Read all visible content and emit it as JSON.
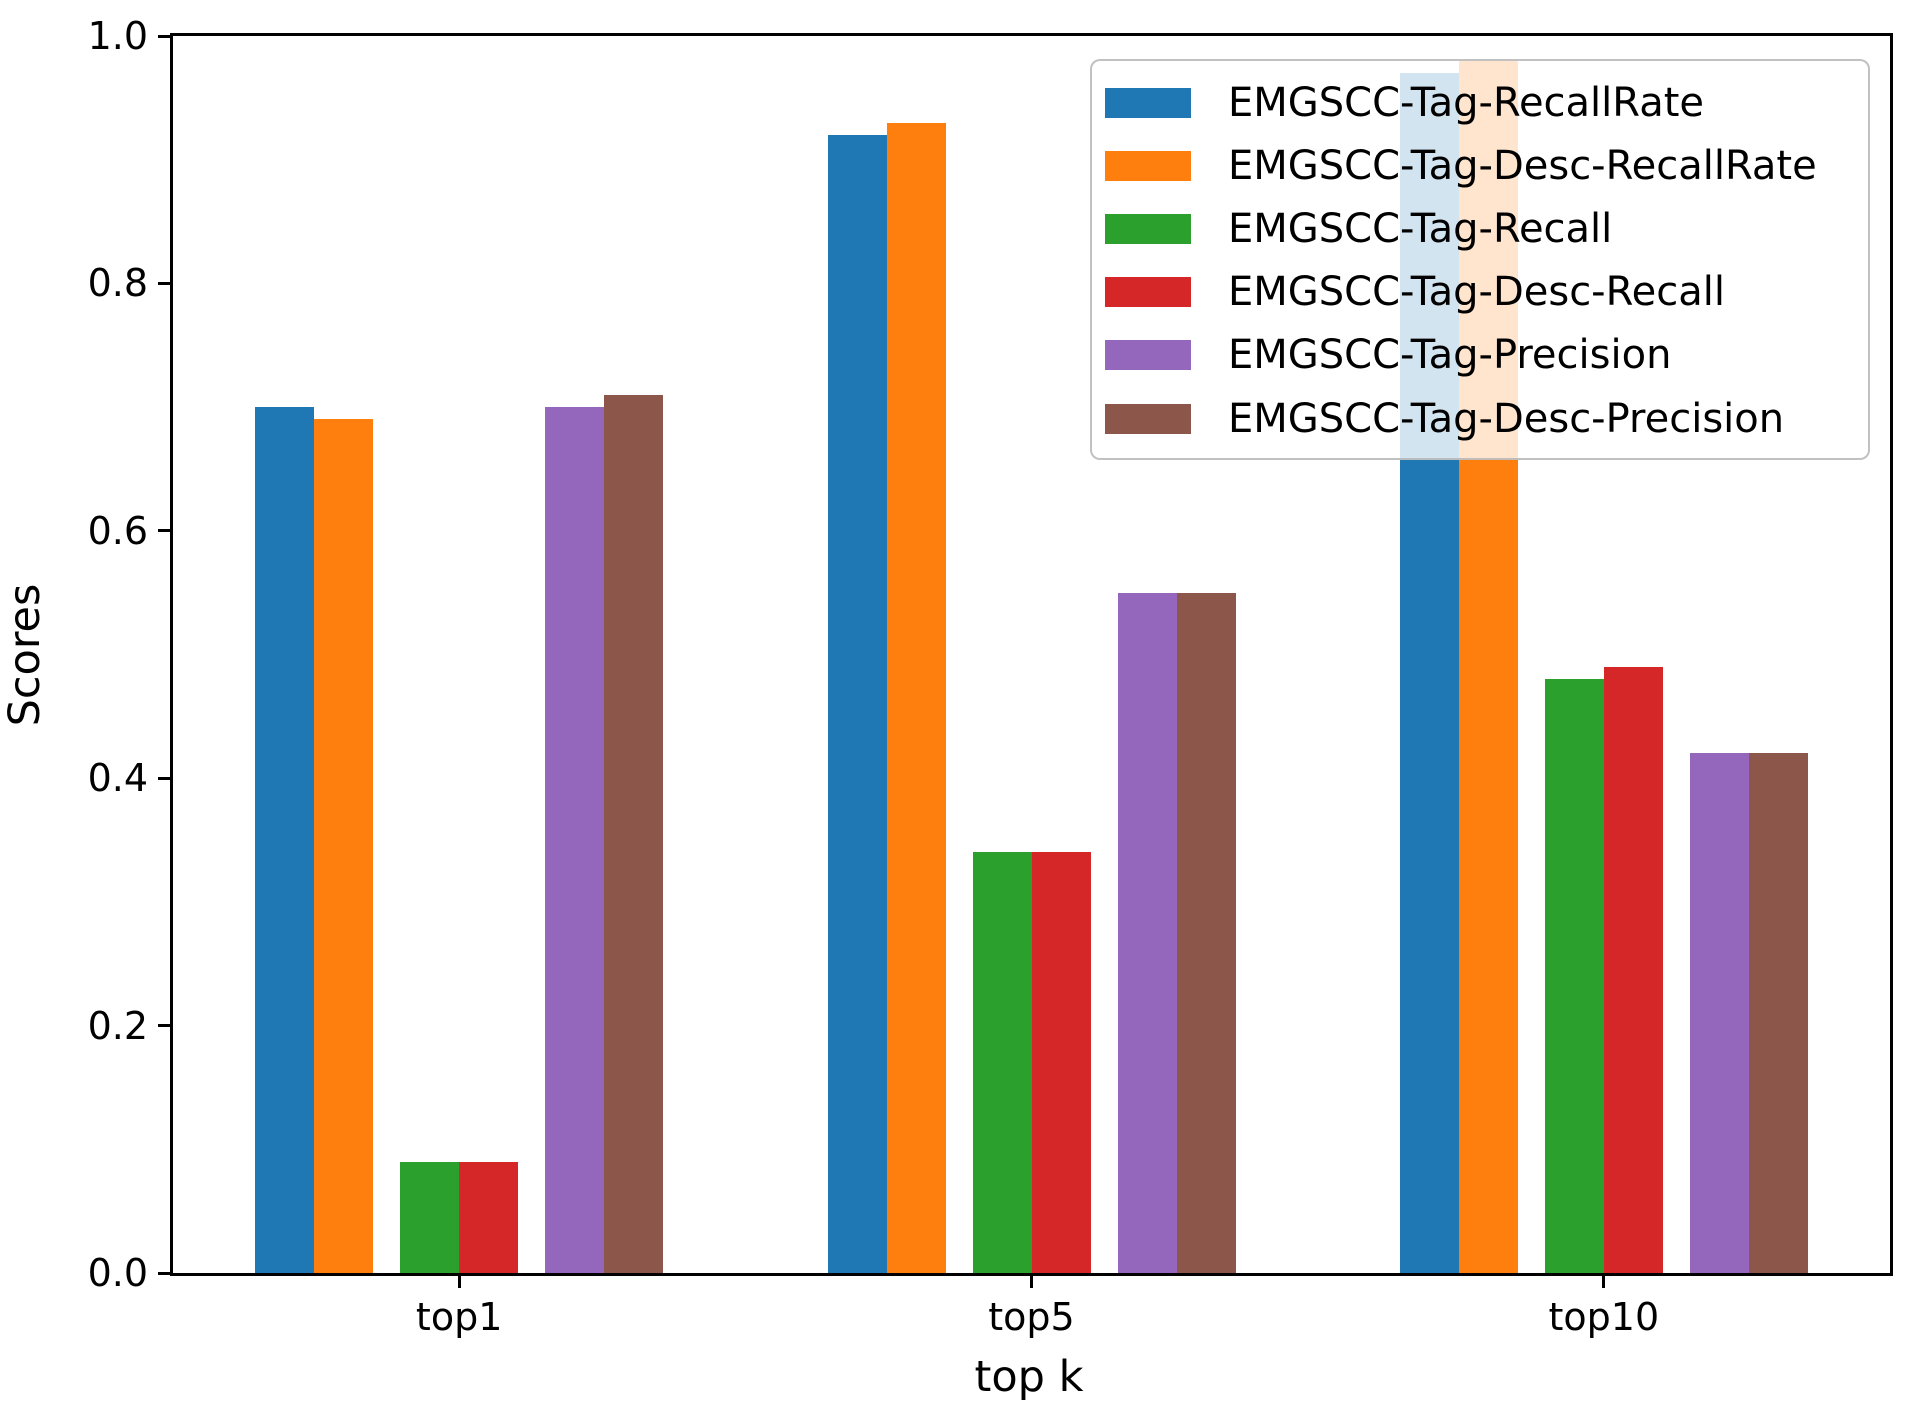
{
  "chart_data": {
    "type": "bar",
    "title": "",
    "xlabel": "top k",
    "ylabel": "Scores",
    "categories": [
      "top1",
      "top5",
      "top10"
    ],
    "series": [
      {
        "name": "EMGSCC-Tag-RecallRate",
        "color": "#1f77b4",
        "values": [
          0.7,
          0.92,
          0.97
        ]
      },
      {
        "name": "EMGSCC-Tag-Desc-RecallRate",
        "color": "#ff7f0e",
        "values": [
          0.69,
          0.93,
          0.98
        ]
      },
      {
        "name": "EMGSCC-Tag-Recall",
        "color": "#2ca02c",
        "values": [
          0.09,
          0.34,
          0.48
        ]
      },
      {
        "name": "EMGSCC-Tag-Desc-Recall",
        "color": "#d62728",
        "values": [
          0.09,
          0.34,
          0.49
        ]
      },
      {
        "name": "EMGSCC-Tag-Precision",
        "color": "#9467bd",
        "values": [
          0.7,
          0.55,
          0.42
        ]
      },
      {
        "name": "EMGSCC-Tag-Desc-Precision",
        "color": "#8c564b",
        "values": [
          0.71,
          0.55,
          0.42
        ]
      }
    ],
    "ylim": [
      0.0,
      1.0
    ],
    "yticks": [
      "0.0",
      "0.2",
      "0.4",
      "0.6",
      "0.8",
      "1.0"
    ],
    "legend_position": "upper right",
    "legend_background_alpha": 0.8,
    "grid": false,
    "axis_color": "#000000"
  }
}
